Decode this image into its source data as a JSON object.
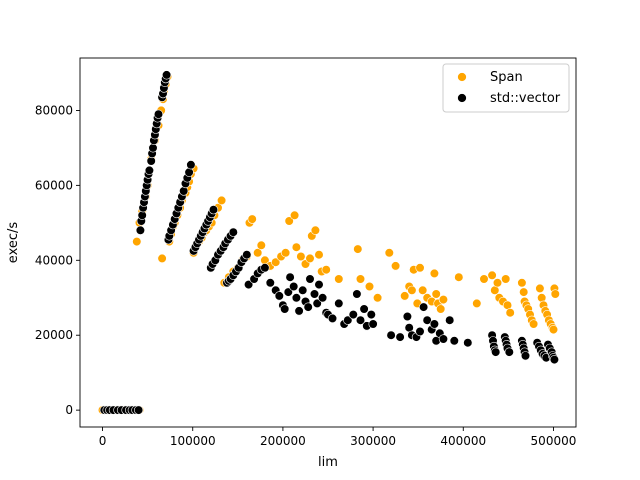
{
  "chart_data": {
    "type": "scatter",
    "title": "",
    "xlabel": "lim",
    "ylabel": "exec/s",
    "xlim": [
      -25000,
      525000
    ],
    "ylim": [
      -4500,
      94000
    ],
    "xticks": [
      0,
      100000,
      200000,
      300000,
      400000,
      500000
    ],
    "xtick_labels": [
      "0",
      "100000",
      "200000",
      "300000",
      "400000",
      "500000"
    ],
    "yticks": [
      0,
      20000,
      40000,
      60000,
      80000
    ],
    "ytick_labels": [
      "0",
      "20000",
      "40000",
      "60000",
      "80000"
    ],
    "grid": false,
    "legend_position": "top-right",
    "series": [
      {
        "name": "Span",
        "color": "#ffa500",
        "points": [
          [
            0,
            0
          ],
          [
            3000,
            0
          ],
          [
            6000,
            0
          ],
          [
            15000,
            0
          ],
          [
            19000,
            0
          ],
          [
            24000,
            0
          ],
          [
            28000,
            0
          ],
          [
            35000,
            0
          ],
          [
            38000,
            0
          ],
          [
            41000,
            0
          ],
          [
            38000,
            45000
          ],
          [
            41000,
            50000
          ],
          [
            44000,
            53000
          ],
          [
            48000,
            57000
          ],
          [
            50000,
            60000
          ],
          [
            54000,
            67000
          ],
          [
            56000,
            70000
          ],
          [
            58000,
            72000
          ],
          [
            62000,
            76000
          ],
          [
            65000,
            80000
          ],
          [
            67000,
            83000
          ],
          [
            68000,
            85000
          ],
          [
            70000,
            87000
          ],
          [
            72000,
            89000
          ],
          [
            66000,
            40500
          ],
          [
            74000,
            45000
          ],
          [
            76000,
            47000
          ],
          [
            78000,
            49000
          ],
          [
            80000,
            50000
          ],
          [
            83000,
            52000
          ],
          [
            86000,
            54000
          ],
          [
            88000,
            56000
          ],
          [
            92000,
            58000
          ],
          [
            94000,
            59500
          ],
          [
            96000,
            61000
          ],
          [
            98000,
            63000
          ],
          [
            101000,
            64500
          ],
          [
            101000,
            42000
          ],
          [
            104000,
            44000
          ],
          [
            107000,
            45000
          ],
          [
            110000,
            46000
          ],
          [
            113000,
            47500
          ],
          [
            115000,
            48000
          ],
          [
            118000,
            49000
          ],
          [
            121000,
            50000
          ],
          [
            124000,
            52000
          ],
          [
            128000,
            54000
          ],
          [
            132000,
            56000
          ],
          [
            135000,
            34000
          ],
          [
            140000,
            35500
          ],
          [
            145000,
            37000
          ],
          [
            150000,
            38000
          ],
          [
            155000,
            40000
          ],
          [
            160000,
            41000
          ],
          [
            163000,
            50000
          ],
          [
            166000,
            51000
          ],
          [
            172000,
            42000
          ],
          [
            176000,
            44000
          ],
          [
            180000,
            40000
          ],
          [
            186000,
            38500
          ],
          [
            192000,
            39500
          ],
          [
            198000,
            41000
          ],
          [
            203000,
            42000
          ],
          [
            207000,
            50500
          ],
          [
            213000,
            52000
          ],
          [
            215000,
            43500
          ],
          [
            220000,
            41000
          ],
          [
            225000,
            39000
          ],
          [
            230000,
            40500
          ],
          [
            232000,
            46500
          ],
          [
            236000,
            48000
          ],
          [
            240000,
            41500
          ],
          [
            243000,
            37000
          ],
          [
            248000,
            37500
          ],
          [
            262000,
            35000
          ],
          [
            283000,
            43000
          ],
          [
            286000,
            35000
          ],
          [
            296000,
            33000
          ],
          [
            305000,
            30000
          ],
          [
            318000,
            42000
          ],
          [
            325000,
            38500
          ],
          [
            335000,
            30500
          ],
          [
            340000,
            33000
          ],
          [
            343000,
            32000
          ],
          [
            345000,
            37500
          ],
          [
            349000,
            28500
          ],
          [
            352000,
            38000
          ],
          [
            355000,
            32000
          ],
          [
            360000,
            30000
          ],
          [
            365000,
            29000
          ],
          [
            368000,
            36500
          ],
          [
            370000,
            31000
          ],
          [
            372000,
            28500
          ],
          [
            375000,
            27000
          ],
          [
            378000,
            29500
          ],
          [
            395000,
            35500
          ],
          [
            415000,
            28500
          ],
          [
            423000,
            35000
          ],
          [
            432000,
            36000
          ],
          [
            435000,
            32000
          ],
          [
            438000,
            34000
          ],
          [
            440000,
            30000
          ],
          [
            444000,
            29000
          ],
          [
            447000,
            35000
          ],
          [
            449000,
            28000
          ],
          [
            452000,
            26000
          ],
          [
            465000,
            34000
          ],
          [
            467000,
            31500
          ],
          [
            468000,
            29000
          ],
          [
            470000,
            28000
          ],
          [
            472000,
            27000
          ],
          [
            474000,
            25500
          ],
          [
            476000,
            24000
          ],
          [
            478000,
            23000
          ],
          [
            485000,
            32500
          ],
          [
            487000,
            30000
          ],
          [
            489000,
            28000
          ],
          [
            491000,
            26500
          ],
          [
            493000,
            25500
          ],
          [
            495000,
            24000
          ],
          [
            497000,
            23000
          ],
          [
            499000,
            22000
          ],
          [
            500000,
            21500
          ],
          [
            501000,
            32500
          ],
          [
            502000,
            31000
          ]
        ]
      },
      {
        "name": "std::vector",
        "color": "#000000",
        "points": [
          [
            2000,
            0
          ],
          [
            5000,
            0
          ],
          [
            8000,
            0
          ],
          [
            12000,
            0
          ],
          [
            17000,
            0
          ],
          [
            21000,
            0
          ],
          [
            26000,
            0
          ],
          [
            30000,
            0
          ],
          [
            33000,
            0
          ],
          [
            37000,
            0
          ],
          [
            40000,
            0
          ],
          [
            42000,
            48000
          ],
          [
            43000,
            50500
          ],
          [
            44000,
            52000
          ],
          [
            45000,
            54000
          ],
          [
            46000,
            55500
          ],
          [
            47000,
            57000
          ],
          [
            48000,
            58500
          ],
          [
            49000,
            60000
          ],
          [
            50000,
            61500
          ],
          [
            51000,
            63000
          ],
          [
            52000,
            64000
          ],
          [
            54000,
            66500
          ],
          [
            55000,
            68500
          ],
          [
            56000,
            70000
          ],
          [
            57000,
            72000
          ],
          [
            58000,
            73500
          ],
          [
            59000,
            75000
          ],
          [
            60000,
            76500
          ],
          [
            61000,
            78000
          ],
          [
            62000,
            79000
          ],
          [
            66000,
            83500
          ],
          [
            67000,
            84500
          ],
          [
            68000,
            86000
          ],
          [
            69000,
            87500
          ],
          [
            70000,
            88500
          ],
          [
            71000,
            89500
          ],
          [
            73000,
            45500
          ],
          [
            74000,
            46500
          ],
          [
            76000,
            48000
          ],
          [
            78000,
            49500
          ],
          [
            80000,
            51000
          ],
          [
            82000,
            52500
          ],
          [
            84000,
            54000
          ],
          [
            86000,
            55500
          ],
          [
            88000,
            57000
          ],
          [
            90000,
            58500
          ],
          [
            92000,
            60500
          ],
          [
            94000,
            62000
          ],
          [
            96000,
            63500
          ],
          [
            98000,
            65500
          ],
          [
            101000,
            42500
          ],
          [
            103000,
            43500
          ],
          [
            105000,
            44500
          ],
          [
            107000,
            45500
          ],
          [
            109000,
            46500
          ],
          [
            111000,
            47500
          ],
          [
            113000,
            48500
          ],
          [
            115000,
            49500
          ],
          [
            117000,
            50500
          ],
          [
            119000,
            51500
          ],
          [
            121000,
            52500
          ],
          [
            123000,
            53500
          ],
          [
            120000,
            38000
          ],
          [
            122000,
            39000
          ],
          [
            125000,
            40000
          ],
          [
            128000,
            41500
          ],
          [
            131000,
            42500
          ],
          [
            134000,
            43500
          ],
          [
            136000,
            44500
          ],
          [
            139000,
            45500
          ],
          [
            142000,
            46500
          ],
          [
            145000,
            47500
          ],
          [
            138000,
            34000
          ],
          [
            140000,
            34500
          ],
          [
            142000,
            35000
          ],
          [
            145000,
            36000
          ],
          [
            148000,
            37000
          ],
          [
            151000,
            38000
          ],
          [
            154000,
            39500
          ],
          [
            157000,
            40500
          ],
          [
            160000,
            41500
          ],
          [
            162000,
            33500
          ],
          [
            168000,
            35000
          ],
          [
            172000,
            36500
          ],
          [
            176000,
            37500
          ],
          [
            180000,
            38000
          ],
          [
            186000,
            34000
          ],
          [
            192000,
            32000
          ],
          [
            196000,
            30500
          ],
          [
            200000,
            28000
          ],
          [
            202000,
            27000
          ],
          [
            206000,
            31500
          ],
          [
            208000,
            35500
          ],
          [
            212000,
            33000
          ],
          [
            215000,
            30000
          ],
          [
            218000,
            26500
          ],
          [
            222000,
            32000
          ],
          [
            225000,
            29000
          ],
          [
            228000,
            27500
          ],
          [
            230000,
            35000
          ],
          [
            235000,
            31000
          ],
          [
            238000,
            28500
          ],
          [
            240000,
            33500
          ],
          [
            244000,
            30000
          ],
          [
            248000,
            26000
          ],
          [
            250000,
            25500
          ],
          [
            255000,
            24500
          ],
          [
            262000,
            28500
          ],
          [
            268000,
            23000
          ],
          [
            272000,
            24000
          ],
          [
            278000,
            25500
          ],
          [
            282000,
            31000
          ],
          [
            286000,
            24000
          ],
          [
            290000,
            27000
          ],
          [
            293000,
            22500
          ],
          [
            298000,
            25500
          ],
          [
            300000,
            23000
          ],
          [
            320000,
            20000
          ],
          [
            330000,
            19500
          ],
          [
            338000,
            25000
          ],
          [
            340000,
            22000
          ],
          [
            343000,
            20000
          ],
          [
            348000,
            19500
          ],
          [
            352000,
            21000
          ],
          [
            356000,
            27500
          ],
          [
            360000,
            24000
          ],
          [
            365000,
            21500
          ],
          [
            368000,
            23000
          ],
          [
            370000,
            18500
          ],
          [
            374000,
            20500
          ],
          [
            378000,
            19000
          ],
          [
            385000,
            24000
          ],
          [
            390000,
            18500
          ],
          [
            405000,
            18000
          ],
          [
            432000,
            20000
          ],
          [
            433000,
            18500
          ],
          [
            434000,
            17000
          ],
          [
            435000,
            16000
          ],
          [
            436000,
            15500
          ],
          [
            446000,
            19500
          ],
          [
            447000,
            18500
          ],
          [
            448000,
            17500
          ],
          [
            449000,
            16500
          ],
          [
            451000,
            15500
          ],
          [
            465000,
            18500
          ],
          [
            466000,
            17500
          ],
          [
            467000,
            16500
          ],
          [
            468000,
            15500
          ],
          [
            469000,
            14500
          ],
          [
            482000,
            18000
          ],
          [
            484000,
            17000
          ],
          [
            486000,
            16000
          ],
          [
            488000,
            15000
          ],
          [
            490000,
            14500
          ],
          [
            492000,
            14000
          ],
          [
            494000,
            17500
          ],
          [
            496000,
            16500
          ],
          [
            498000,
            15500
          ],
          [
            499000,
            14500
          ],
          [
            500000,
            14000
          ],
          [
            501000,
            13500
          ]
        ]
      }
    ]
  }
}
